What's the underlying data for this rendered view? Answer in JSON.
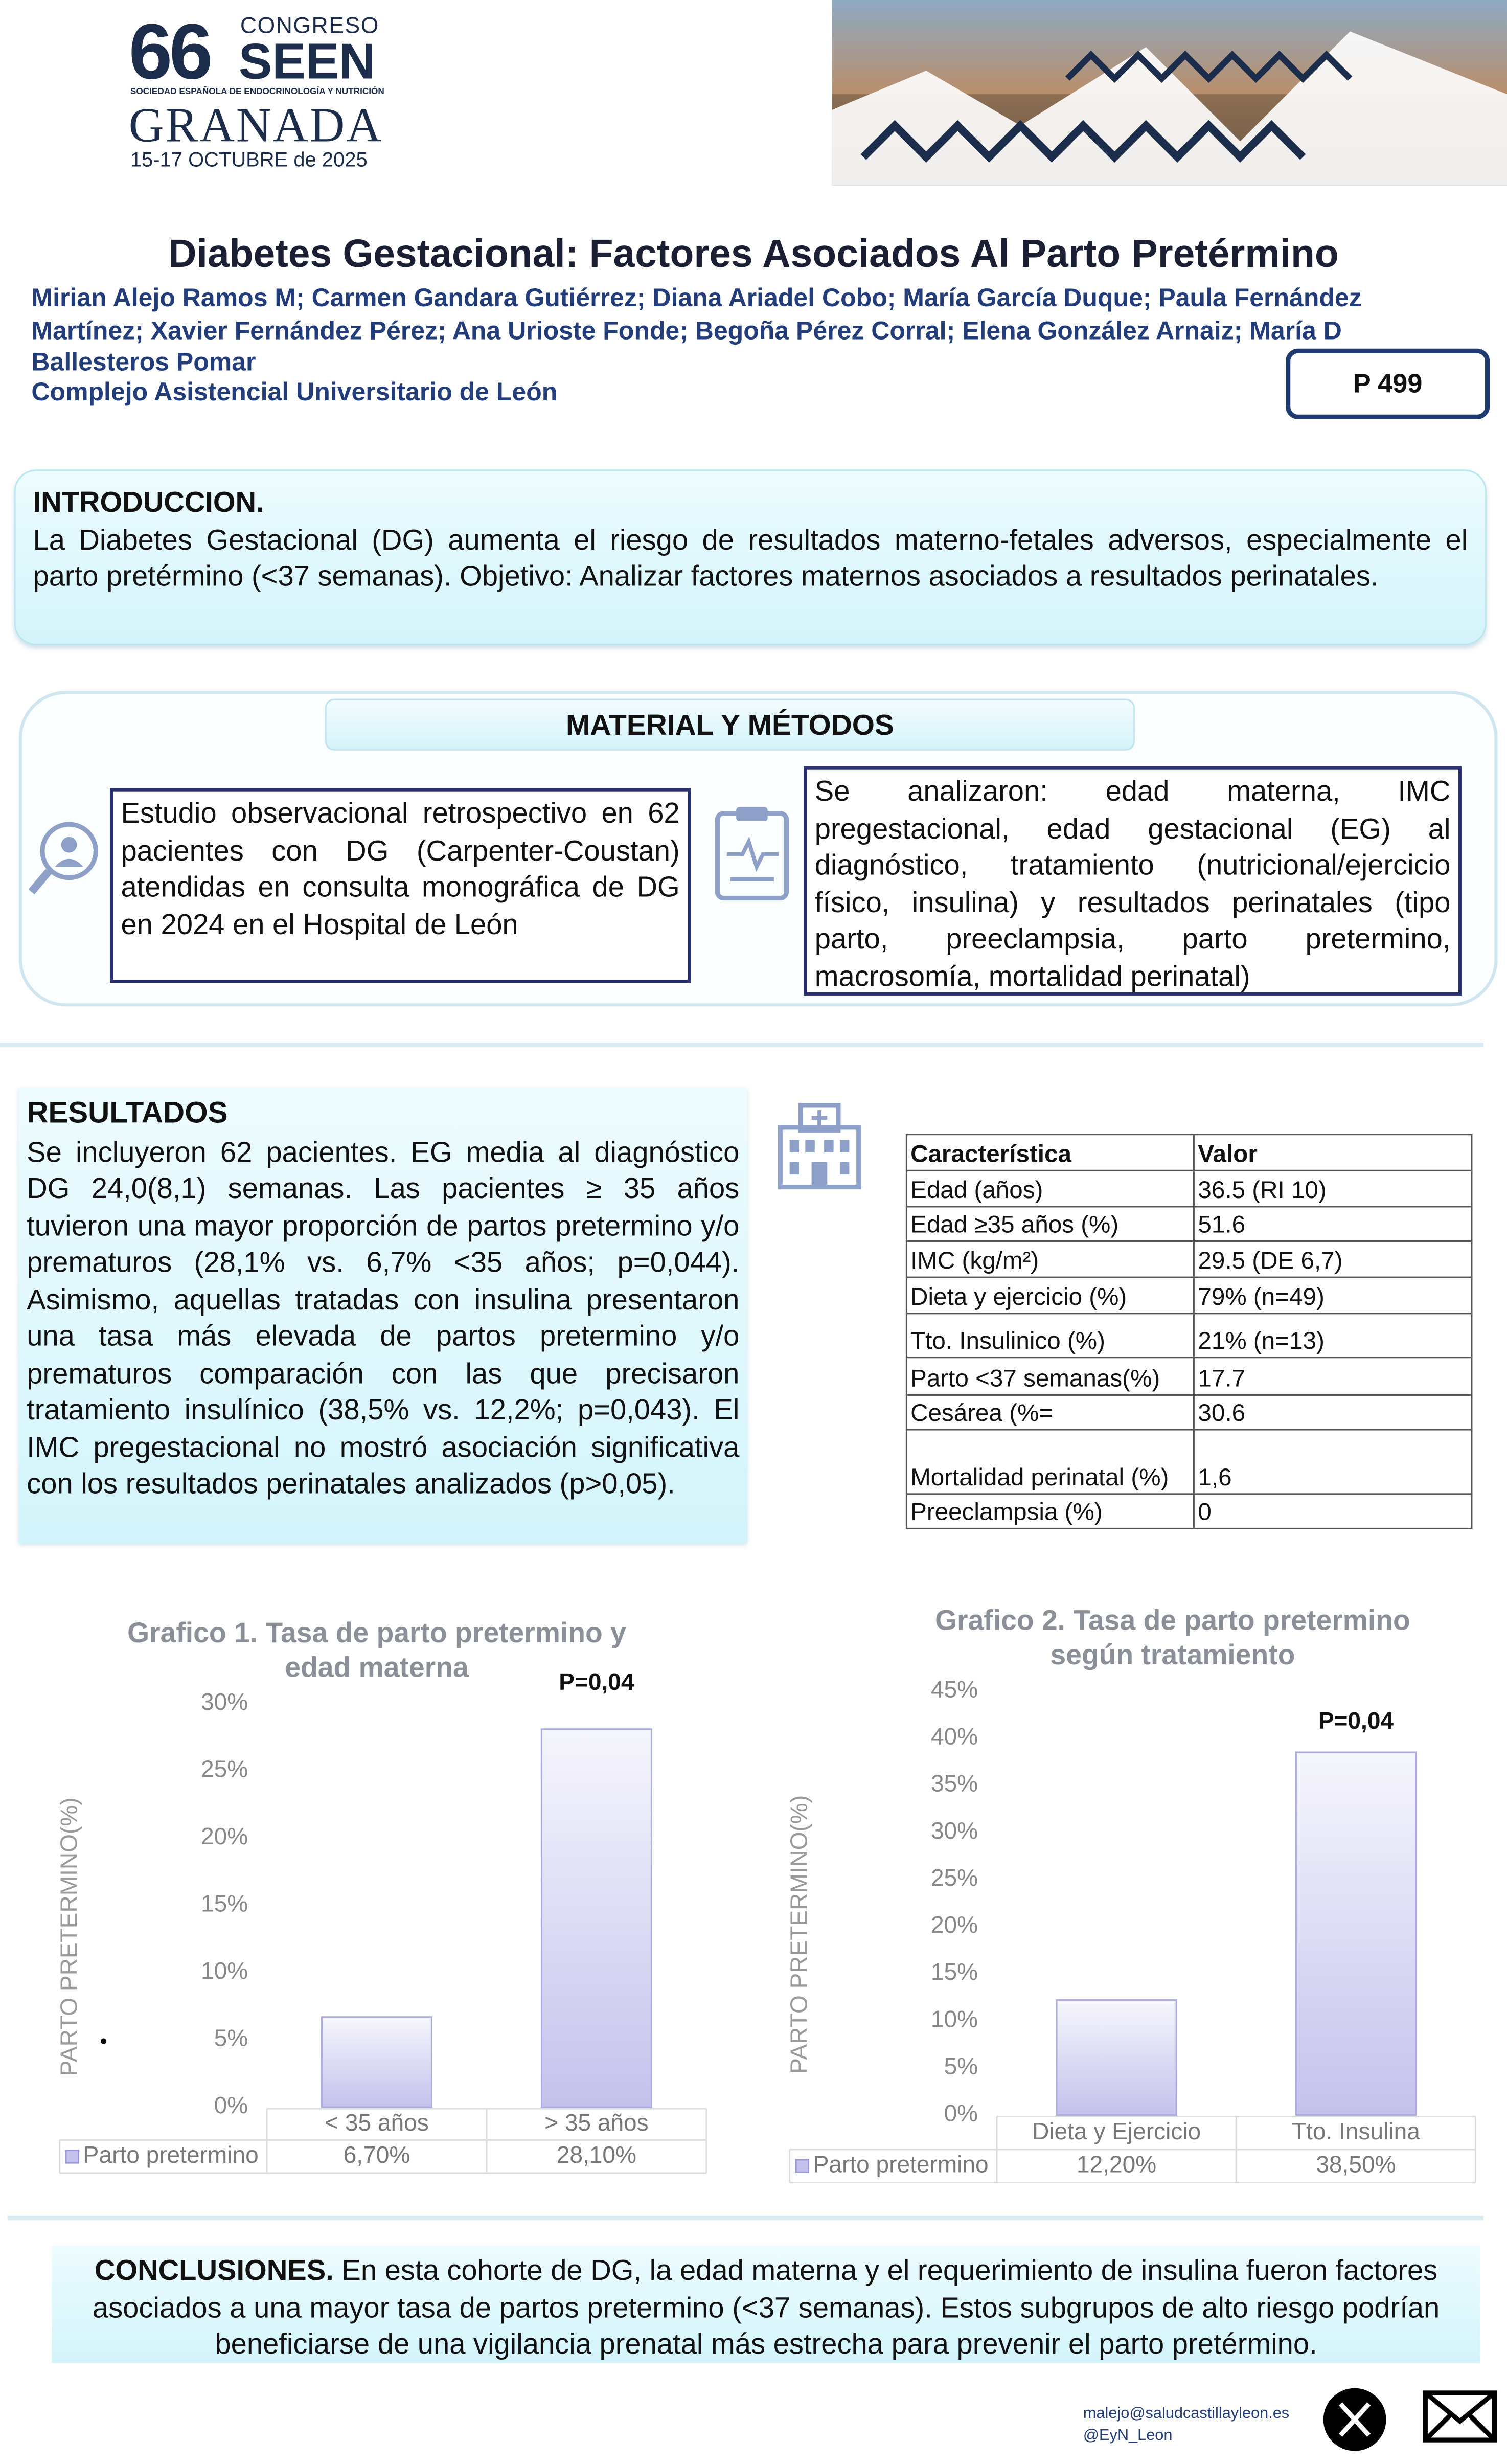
{
  "header": {
    "number": "66",
    "congress": "CONGRESO",
    "society": "SEEN",
    "society_full": "SOCIEDAD ESPAÑOLA DE ENDOCRINOLOGÍA Y NUTRICIÓN",
    "city": "GRANADA",
    "dates": "15-17 OCTUBRE de 2025"
  },
  "title": "Diabetes Gestacional: Factores Asociados Al Parto Pretérmino",
  "authors": "Mirian Alejo Ramos M; Carmen Gandara Gutiérrez; Diana Ariadel Cobo; María García Duque; Paula Fernández Martínez; Xavier Fernández Pérez; Ana Urioste Fonde; Begoña Pérez Corral; Elena González Arnaiz; María D Ballesteros Pomar",
  "institution": "Complejo Asistencial Universitario de León",
  "poster_id": "P 499",
  "introduction": {
    "heading": "INTRODUCCION.",
    "text": "La Diabetes Gestacional (DG) aumenta el riesgo de resultados materno-fetales adversos, especialmente el parto pretérmino (<37 semanas). Objetivo: Analizar factores maternos asociados a resultados perinatales."
  },
  "methods": {
    "heading": "MATERIAL Y MÉTODOS",
    "left": "Estudio observacional retrospectivo en 62 pacientes con DG (Carpenter-Coustan) atendidas en consulta monográfica de DG en 2024 en el Hospital de León",
    "right": "Se analizaron: edad materna, IMC pregestacional, edad gestacional (EG) al diagnóstico, tratamiento (nutricional/ejercicio físico, insulina) y resultados perinatales (tipo parto, preeclampsia, parto pretermino, macrosomía, mortalidad perinatal)"
  },
  "results": {
    "heading": "RESULTADOS",
    "text": "Se incluyeron 62 pacientes. EG media al diagnóstico DG 24,0(8,1) semanas. Las pacientes ≥ 35 años tuvieron una mayor proporción de partos pretermino y/o prematuros (28,1% vs. 6,7% <35 años; p=0,044). Asimismo, aquellas tratadas con insulina presentaron una tasa más elevada de partos pretermino y/o prematuros comparación con las que precisaron tratamiento insulínico (38,5% vs. 12,2%; p=0,043).  El IMC pregestacional no mostró asociación significativa con los resultados perinatales analizados (p>0,05)."
  },
  "table": {
    "header": [
      "Característica",
      "Valor"
    ],
    "rows": [
      [
        "Edad (años)",
        "36.5 (RI 10)"
      ],
      [
        "Edad ≥35 años (%)",
        "51.6"
      ],
      [
        "IMC (kg/m²)",
        "29.5 (DE 6,7)"
      ],
      [
        "Dieta y ejercicio (%)",
        "79% (n=49)"
      ],
      [
        "Tto. Insulinico (%)",
        "21% (n=13)"
      ],
      [
        "Parto <37 semanas(%)",
        "17.7"
      ],
      [
        "Cesárea (%=",
        "30.6"
      ],
      [
        "Mortalidad perinatal (%)",
        "1,6"
      ],
      [
        "Preeclampsia (%)",
        "0"
      ]
    ]
  },
  "chart_data": [
    {
      "type": "bar",
      "title": "Grafico 1. Tasa de parto pretermino y edad materna",
      "y_label": "PARTO PRETERMINO(%)",
      "annotation": "P=0,04",
      "categories": [
        "< 35 años",
        "> 35 años"
      ],
      "series": [
        {
          "name": "Parto pretermino",
          "color": "#c4c2ec",
          "values": [
            6.7,
            28.1
          ],
          "value_labels": [
            "6,70%",
            "28,10%"
          ]
        }
      ],
      "ylim": [
        0,
        30
      ],
      "yticks": [
        {
          "value": 0,
          "label": "0%"
        },
        {
          "value": 5,
          "label": "5%"
        },
        {
          "value": 10,
          "label": "10%"
        },
        {
          "value": 15,
          "label": "15%"
        },
        {
          "value": 20,
          "label": "20%"
        },
        {
          "value": 25,
          "label": "25%"
        },
        {
          "value": 30,
          "label": "30%"
        }
      ],
      "grid": false
    },
    {
      "type": "bar",
      "title": "Grafico 2. Tasa de parto pretermino según tratamiento",
      "y_label": "PARTO PRETERMINO(%)",
      "annotation": "P=0,04",
      "categories": [
        "Dieta y Ejercicio",
        "Tto. Insulina"
      ],
      "series": [
        {
          "name": "Parto pretermino",
          "color": "#c4c2ec",
          "values": [
            12.2,
            38.5
          ],
          "value_labels": [
            "12,20%",
            "38,50%"
          ]
        }
      ],
      "ylim": [
        0,
        45
      ],
      "yticks": [
        {
          "value": 0,
          "label": "0%"
        },
        {
          "value": 5,
          "label": "5%"
        },
        {
          "value": 10,
          "label": "10%"
        },
        {
          "value": 15,
          "label": "15%"
        },
        {
          "value": 20,
          "label": "20%"
        },
        {
          "value": 25,
          "label": "25%"
        },
        {
          "value": 30,
          "label": "30%"
        },
        {
          "value": 35,
          "label": "35%"
        },
        {
          "value": 40,
          "label": "40%"
        },
        {
          "value": 45,
          "label": "45%"
        }
      ],
      "grid": false
    }
  ],
  "conclusions": {
    "heading": "CONCLUSIONES.",
    "text": "En esta cohorte de DG, la edad materna y el requerimiento de insulina fueron factores asociados a una mayor tasa de partos pretermino (<37 semanas). Estos subgrupos de alto riesgo podrían beneficiarse de una vigilancia prenatal más estrecha para prevenir el parto pretérmino."
  },
  "footer": {
    "email": "malejo@saludcastillayleon.es",
    "handle": "@EyN_Leon"
  }
}
